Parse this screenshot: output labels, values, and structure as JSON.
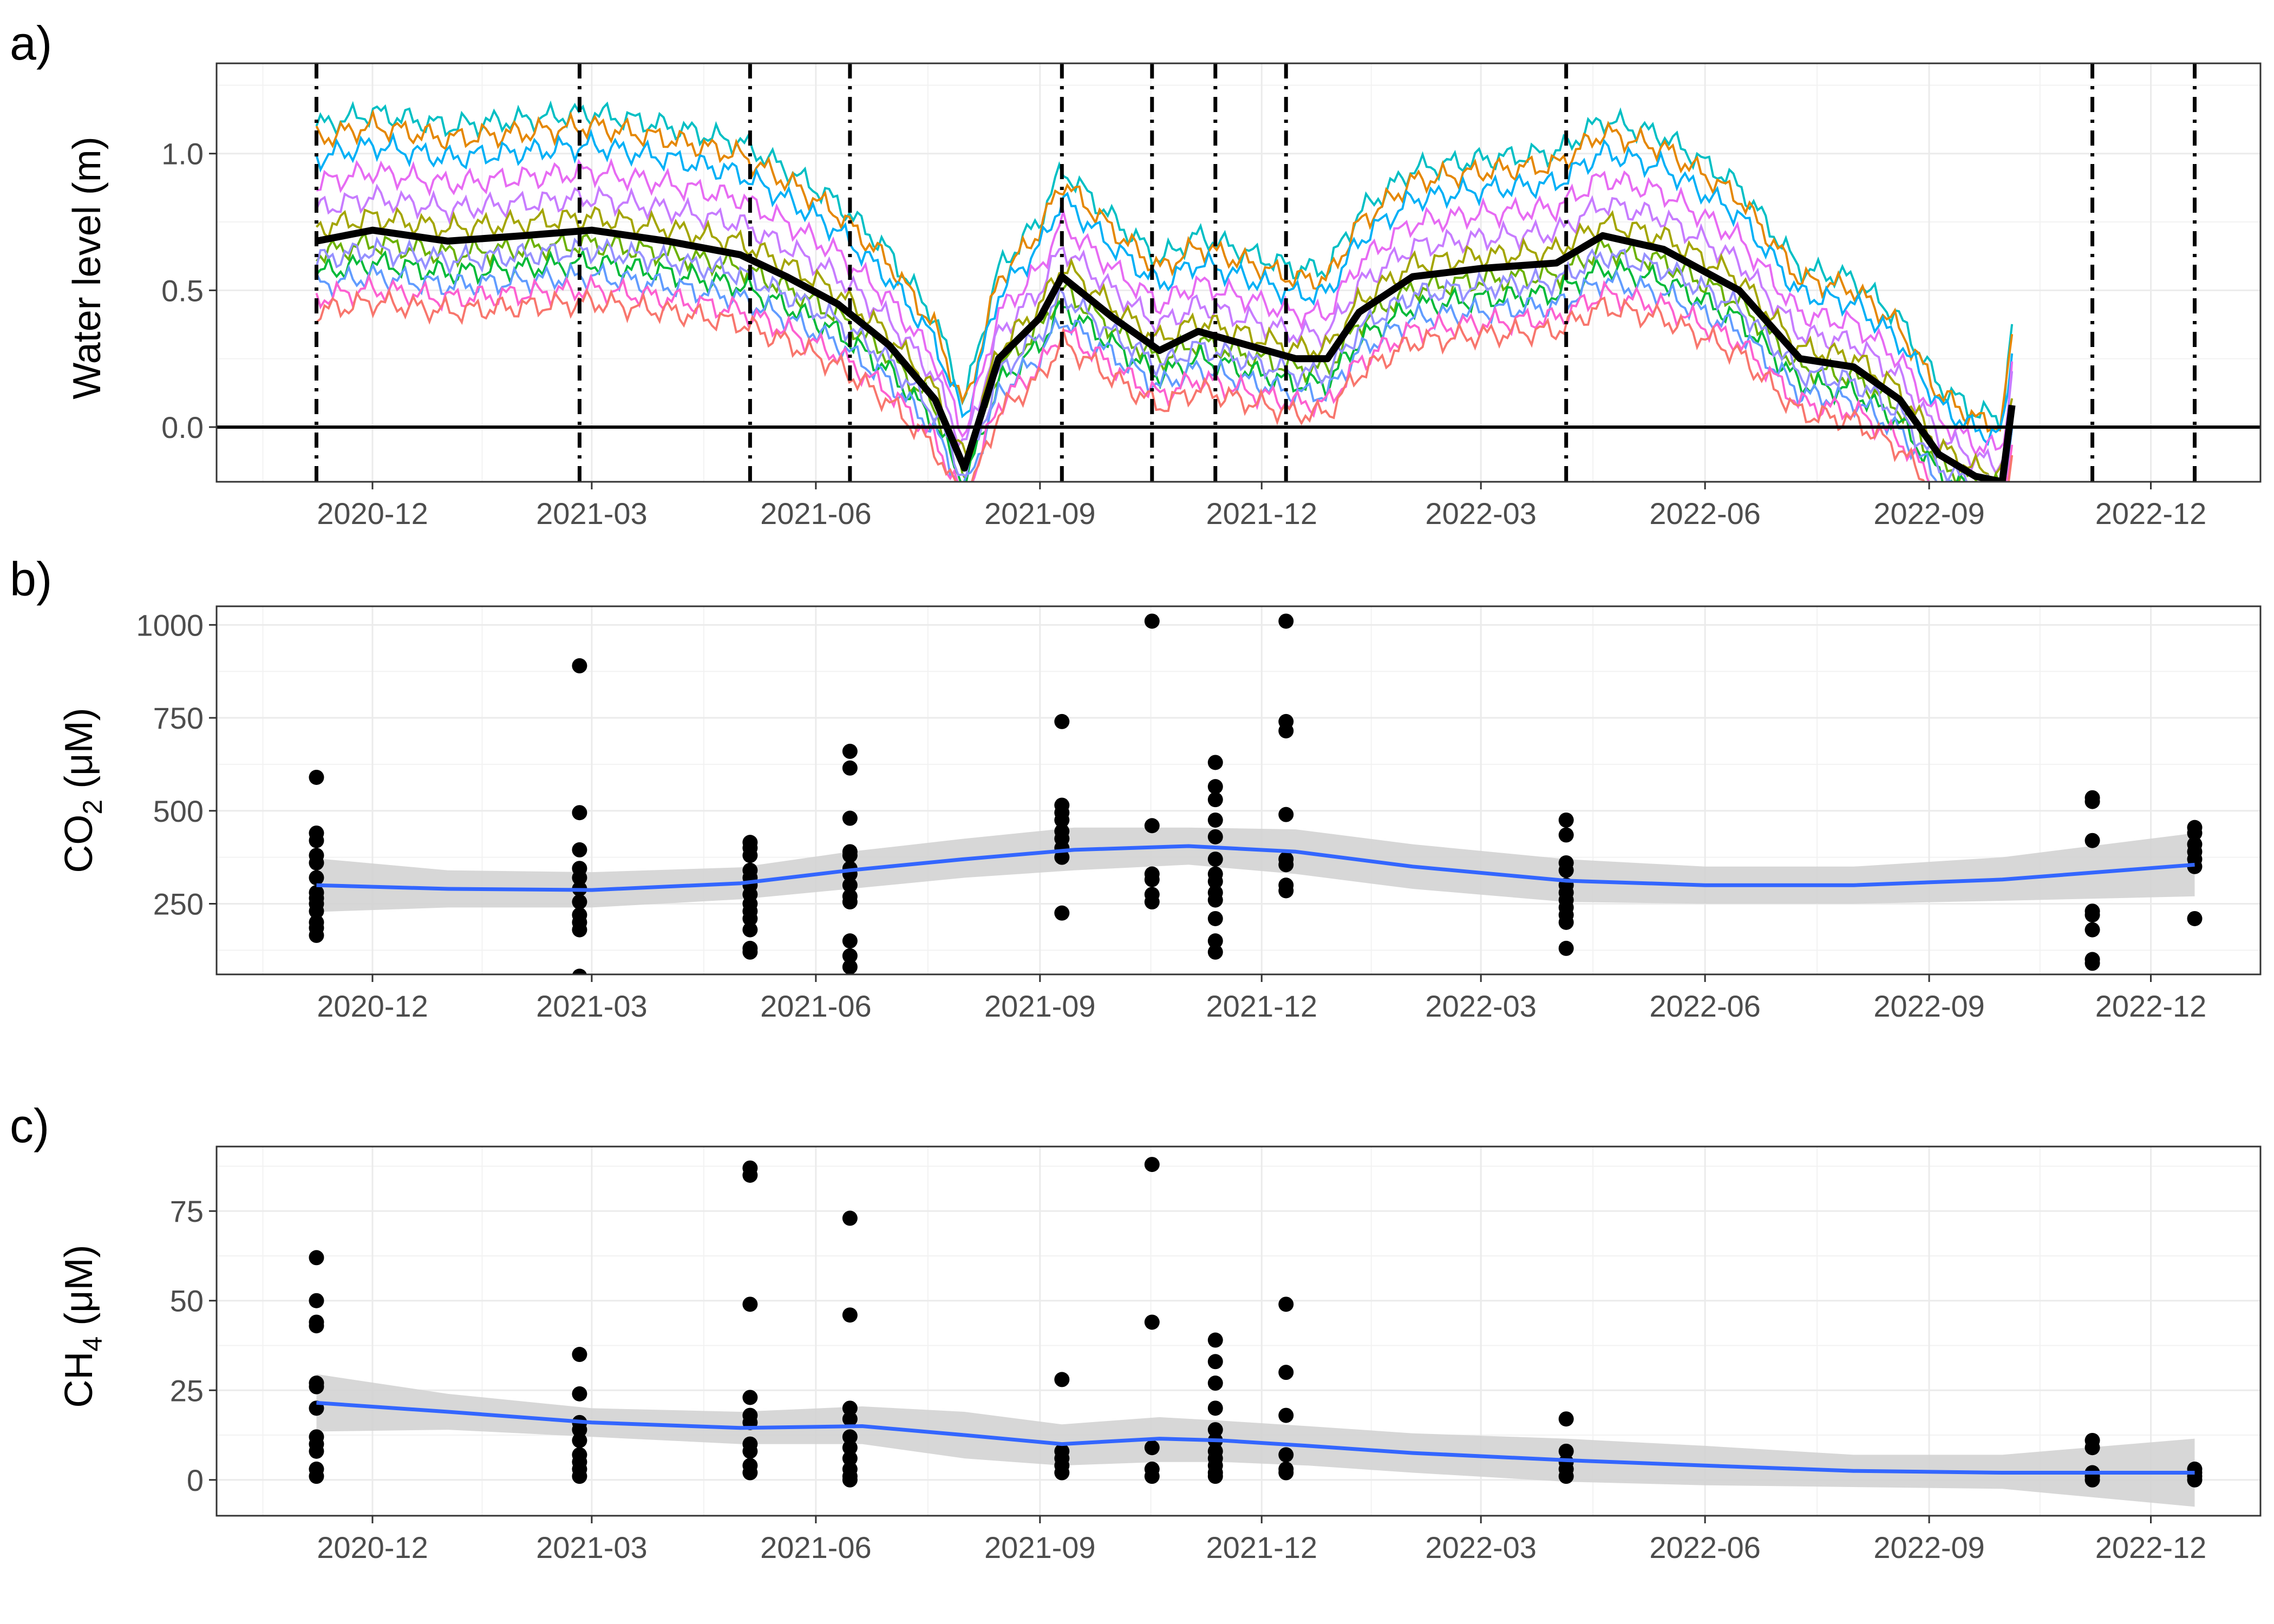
{
  "chart_data": [
    {
      "panel_label": "a)",
      "type": "line",
      "ylabel": "Water level (m)",
      "ylim": [
        -0.2,
        1.33
      ],
      "yticks": [
        "0.0",
        "0.5",
        "1.0"
      ],
      "xlim": [
        "2020-09-28",
        "2023-01-15"
      ],
      "xticks": [
        "2020-12",
        "2021-03",
        "2021-06",
        "2021-09",
        "2021-12",
        "2022-03",
        "2022-06",
        "2022-09",
        "2022-12"
      ],
      "grid": true,
      "reference_line_y": 0,
      "sampling_dates": [
        "2020-11-08",
        "2021-02-24",
        "2021-05-05",
        "2021-06-15",
        "2021-09-10",
        "2021-10-17",
        "2021-11-12",
        "2021-12-11",
        "2022-04-05",
        "2022-11-07",
        "2022-12-19"
      ],
      "mean_series": {
        "name": "mean",
        "color": "#000000",
        "x": [
          "2020-11-08",
          "2020-12-01",
          "2021-01-01",
          "2021-02-01",
          "2021-03-01",
          "2021-04-01",
          "2021-05-01",
          "2021-05-20",
          "2021-06-10",
          "2021-07-01",
          "2021-07-20",
          "2021-08-01",
          "2021-08-15",
          "2021-09-01",
          "2021-09-10",
          "2021-10-01",
          "2021-10-20",
          "2021-11-05",
          "2021-11-25",
          "2021-12-15",
          "2021-12-28",
          "2022-01-10",
          "2022-02-01",
          "2022-03-01",
          "2022-04-01",
          "2022-04-20",
          "2022-05-15",
          "2022-06-15",
          "2022-07-10",
          "2022-08-01",
          "2022-08-20",
          "2022-09-05",
          "2022-09-20",
          "2022-10-01",
          "2022-10-05"
        ],
        "values": [
          0.68,
          0.72,
          0.68,
          0.7,
          0.72,
          0.68,
          0.63,
          0.55,
          0.45,
          0.3,
          0.1,
          -0.15,
          0.25,
          0.4,
          0.55,
          0.4,
          0.28,
          0.35,
          0.3,
          0.25,
          0.25,
          0.42,
          0.55,
          0.58,
          0.6,
          0.7,
          0.65,
          0.5,
          0.25,
          0.22,
          0.1,
          -0.1,
          -0.18,
          -0.2,
          0.08
        ]
      },
      "series": [
        {
          "color": "#00bfc4",
          "offset": 0.36
        },
        {
          "color": "#e58700",
          "offset": 0.32
        },
        {
          "color": "#00b0f6",
          "offset": 0.26
        },
        {
          "color": "#e76bf3",
          "offset": 0.18
        },
        {
          "color": "#c77cff",
          "offset": 0.1
        },
        {
          "color": "#a3a500",
          "offset": 0.04
        },
        {
          "color": "#6bb100",
          "offset": -0.04
        },
        {
          "color": "#00ba38",
          "offset": -0.1
        },
        {
          "color": "#619cff",
          "offset": -0.14
        },
        {
          "color": "#fd61d1",
          "offset": -0.18
        },
        {
          "color": "#f8766d",
          "offset": -0.22
        },
        {
          "color": "#9590ff",
          "offset": -0.06
        }
      ]
    },
    {
      "panel_label": "b)",
      "type": "scatter",
      "ylabel_main": "CO",
      "ylabel_sub": "2",
      "ylabel_unit": " (μM)",
      "ylim": [
        60,
        1050
      ],
      "yticks": [
        250,
        500,
        750,
        1000
      ],
      "xlim": [
        "2020-09-28",
        "2023-01-15"
      ],
      "xticks": [
        "2020-12",
        "2021-03",
        "2021-06",
        "2021-09",
        "2021-12",
        "2022-03",
        "2022-06",
        "2022-09",
        "2022-12"
      ],
      "grid": true,
      "points": [
        [
          "2020-11-08",
          590
        ],
        [
          "2020-11-08",
          440
        ],
        [
          "2020-11-08",
          420
        ],
        [
          "2020-11-08",
          380
        ],
        [
          "2020-11-08",
          360
        ],
        [
          "2020-11-08",
          320
        ],
        [
          "2020-11-08",
          280
        ],
        [
          "2020-11-08",
          265
        ],
        [
          "2020-11-08",
          250
        ],
        [
          "2020-11-08",
          230
        ],
        [
          "2020-11-08",
          200
        ],
        [
          "2020-11-08",
          185
        ],
        [
          "2020-11-08",
          165
        ],
        [
          "2021-02-24",
          890
        ],
        [
          "2021-02-24",
          495
        ],
        [
          "2021-02-24",
          395
        ],
        [
          "2021-02-24",
          345
        ],
        [
          "2021-02-24",
          320
        ],
        [
          "2021-02-24",
          290
        ],
        [
          "2021-02-24",
          255
        ],
        [
          "2021-02-24",
          220
        ],
        [
          "2021-02-24",
          200
        ],
        [
          "2021-02-24",
          180
        ],
        [
          "2021-02-24",
          55
        ],
        [
          "2021-05-05",
          415
        ],
        [
          "2021-05-05",
          400
        ],
        [
          "2021-05-05",
          380
        ],
        [
          "2021-05-05",
          340
        ],
        [
          "2021-05-05",
          320
        ],
        [
          "2021-05-05",
          300
        ],
        [
          "2021-05-05",
          275
        ],
        [
          "2021-05-05",
          250
        ],
        [
          "2021-05-05",
          230
        ],
        [
          "2021-05-05",
          210
        ],
        [
          "2021-05-05",
          180
        ],
        [
          "2021-05-05",
          130
        ],
        [
          "2021-05-05",
          120
        ],
        [
          "2021-06-15",
          660
        ],
        [
          "2021-06-15",
          615
        ],
        [
          "2021-06-15",
          480
        ],
        [
          "2021-06-15",
          390
        ],
        [
          "2021-06-15",
          380
        ],
        [
          "2021-06-15",
          345
        ],
        [
          "2021-06-15",
          330
        ],
        [
          "2021-06-15",
          300
        ],
        [
          "2021-06-15",
          270
        ],
        [
          "2021-06-15",
          255
        ],
        [
          "2021-06-15",
          150
        ],
        [
          "2021-06-15",
          110
        ],
        [
          "2021-06-15",
          80
        ],
        [
          "2021-09-10",
          740
        ],
        [
          "2021-09-10",
          515
        ],
        [
          "2021-09-10",
          495
        ],
        [
          "2021-09-10",
          475
        ],
        [
          "2021-09-10",
          445
        ],
        [
          "2021-09-10",
          425
        ],
        [
          "2021-09-10",
          400
        ],
        [
          "2021-09-10",
          375
        ],
        [
          "2021-09-10",
          225
        ],
        [
          "2021-10-17",
          1010
        ],
        [
          "2021-10-17",
          460
        ],
        [
          "2021-10-17",
          330
        ],
        [
          "2021-10-17",
          315
        ],
        [
          "2021-10-17",
          275
        ],
        [
          "2021-10-17",
          255
        ],
        [
          "2021-11-12",
          630
        ],
        [
          "2021-11-12",
          565
        ],
        [
          "2021-11-12",
          530
        ],
        [
          "2021-11-12",
          475
        ],
        [
          "2021-11-12",
          430
        ],
        [
          "2021-11-12",
          370
        ],
        [
          "2021-11-12",
          330
        ],
        [
          "2021-11-12",
          310
        ],
        [
          "2021-11-12",
          280
        ],
        [
          "2021-11-12",
          260
        ],
        [
          "2021-11-12",
          210
        ],
        [
          "2021-11-12",
          150
        ],
        [
          "2021-11-12",
          120
        ],
        [
          "2021-12-11",
          1010
        ],
        [
          "2021-12-11",
          740
        ],
        [
          "2021-12-11",
          715
        ],
        [
          "2021-12-11",
          490
        ],
        [
          "2021-12-11",
          370
        ],
        [
          "2021-12-11",
          355
        ],
        [
          "2021-12-11",
          300
        ],
        [
          "2021-12-11",
          285
        ],
        [
          "2022-04-05",
          475
        ],
        [
          "2022-04-05",
          435
        ],
        [
          "2022-04-05",
          360
        ],
        [
          "2022-04-05",
          340
        ],
        [
          "2022-04-05",
          300
        ],
        [
          "2022-04-05",
          280
        ],
        [
          "2022-04-05",
          260
        ],
        [
          "2022-04-05",
          240
        ],
        [
          "2022-04-05",
          220
        ],
        [
          "2022-04-05",
          200
        ],
        [
          "2022-04-05",
          130
        ],
        [
          "2022-11-07",
          535
        ],
        [
          "2022-11-07",
          525
        ],
        [
          "2022-11-07",
          420
        ],
        [
          "2022-11-07",
          230
        ],
        [
          "2022-11-07",
          220
        ],
        [
          "2022-11-07",
          180
        ],
        [
          "2022-11-07",
          100
        ],
        [
          "2022-11-07",
          90
        ],
        [
          "2022-12-19",
          455
        ],
        [
          "2022-12-19",
          440
        ],
        [
          "2022-12-19",
          410
        ],
        [
          "2022-12-19",
          390
        ],
        [
          "2022-12-19",
          370
        ],
        [
          "2022-12-19",
          350
        ],
        [
          "2022-12-19",
          210
        ]
      ],
      "smooth": {
        "color": "#3366ff",
        "band_color": "#d3d3d3",
        "x": [
          "2020-11-08",
          "2021-01-01",
          "2021-03-01",
          "2021-05-01",
          "2021-06-15",
          "2021-08-01",
          "2021-09-15",
          "2021-11-01",
          "2021-12-15",
          "2022-02-01",
          "2022-04-05",
          "2022-06-01",
          "2022-08-01",
          "2022-10-01",
          "2022-12-19"
        ],
        "values": [
          300,
          290,
          287,
          305,
          340,
          370,
          395,
          405,
          390,
          350,
          312,
          300,
          300,
          315,
          355
        ],
        "lower": [
          228,
          240,
          240,
          262,
          290,
          320,
          340,
          355,
          330,
          290,
          255,
          250,
          250,
          258,
          270
        ],
        "upper": [
          372,
          340,
          335,
          348,
          390,
          425,
          455,
          455,
          450,
          410,
          370,
          350,
          350,
          375,
          440
        ]
      }
    },
    {
      "panel_label": "c)",
      "type": "scatter",
      "ylabel_main": "CH",
      "ylabel_sub": "4",
      "ylabel_unit": " (μM)",
      "ylim": [
        -10,
        93
      ],
      "yticks": [
        0,
        25,
        50,
        75
      ],
      "xlim": [
        "2020-09-28",
        "2023-01-15"
      ],
      "xticks": [
        "2020-12",
        "2021-03",
        "2021-06",
        "2021-09",
        "2021-12",
        "2022-03",
        "2022-06",
        "2022-09",
        "2022-12"
      ],
      "grid": true,
      "points": [
        [
          "2020-11-08",
          62
        ],
        [
          "2020-11-08",
          50
        ],
        [
          "2020-11-08",
          44
        ],
        [
          "2020-11-08",
          43
        ],
        [
          "2020-11-08",
          27
        ],
        [
          "2020-11-08",
          26
        ],
        [
          "2020-11-08",
          20
        ],
        [
          "2020-11-08",
          12
        ],
        [
          "2020-11-08",
          10
        ],
        [
          "2020-11-08",
          8
        ],
        [
          "2020-11-08",
          3
        ],
        [
          "2020-11-08",
          1
        ],
        [
          "2021-02-24",
          35
        ],
        [
          "2021-02-24",
          24
        ],
        [
          "2021-02-24",
          16
        ],
        [
          "2021-02-24",
          14
        ],
        [
          "2021-02-24",
          11
        ],
        [
          "2021-02-24",
          7
        ],
        [
          "2021-02-24",
          5
        ],
        [
          "2021-02-24",
          3
        ],
        [
          "2021-02-24",
          1
        ],
        [
          "2021-05-05",
          87
        ],
        [
          "2021-05-05",
          85
        ],
        [
          "2021-05-05",
          49
        ],
        [
          "2021-05-05",
          23
        ],
        [
          "2021-05-05",
          18
        ],
        [
          "2021-05-05",
          16
        ],
        [
          "2021-05-05",
          10
        ],
        [
          "2021-05-05",
          8
        ],
        [
          "2021-05-05",
          4
        ],
        [
          "2021-05-05",
          2
        ],
        [
          "2021-06-15",
          73
        ],
        [
          "2021-06-15",
          46
        ],
        [
          "2021-06-15",
          20
        ],
        [
          "2021-06-15",
          17
        ],
        [
          "2021-06-15",
          12
        ],
        [
          "2021-06-15",
          9
        ],
        [
          "2021-06-15",
          6
        ],
        [
          "2021-06-15",
          3
        ],
        [
          "2021-06-15",
          1
        ],
        [
          "2021-06-15",
          0
        ],
        [
          "2021-09-10",
          28
        ],
        [
          "2021-09-10",
          8
        ],
        [
          "2021-09-10",
          6
        ],
        [
          "2021-09-10",
          4
        ],
        [
          "2021-09-10",
          2
        ],
        [
          "2021-10-17",
          88
        ],
        [
          "2021-10-17",
          44
        ],
        [
          "2021-10-17",
          9
        ],
        [
          "2021-10-17",
          3
        ],
        [
          "2021-10-17",
          1
        ],
        [
          "2021-11-12",
          39
        ],
        [
          "2021-11-12",
          33
        ],
        [
          "2021-11-12",
          27
        ],
        [
          "2021-11-12",
          20
        ],
        [
          "2021-11-12",
          14
        ],
        [
          "2021-11-12",
          11
        ],
        [
          "2021-11-12",
          8
        ],
        [
          "2021-11-12",
          6
        ],
        [
          "2021-11-12",
          4
        ],
        [
          "2021-11-12",
          2
        ],
        [
          "2021-11-12",
          1
        ],
        [
          "2021-12-11",
          49
        ],
        [
          "2021-12-11",
          30
        ],
        [
          "2021-12-11",
          18
        ],
        [
          "2021-12-11",
          7
        ],
        [
          "2021-12-11",
          3
        ],
        [
          "2021-12-11",
          2
        ],
        [
          "2022-04-05",
          17
        ],
        [
          "2022-04-05",
          8
        ],
        [
          "2022-04-05",
          5
        ],
        [
          "2022-04-05",
          3
        ],
        [
          "2022-04-05",
          1
        ],
        [
          "2022-11-07",
          11
        ],
        [
          "2022-11-07",
          9
        ],
        [
          "2022-11-07",
          2
        ],
        [
          "2022-11-07",
          1
        ],
        [
          "2022-11-07",
          0
        ],
        [
          "2022-12-19",
          3
        ],
        [
          "2022-12-19",
          2
        ],
        [
          "2022-12-19",
          1
        ],
        [
          "2022-12-19",
          0
        ]
      ],
      "smooth": {
        "color": "#3366ff",
        "band_color": "#d3d3d3",
        "x": [
          "2020-11-08",
          "2021-01-01",
          "2021-03-01",
          "2021-05-01",
          "2021-06-20",
          "2021-08-01",
          "2021-09-10",
          "2021-10-20",
          "2021-11-15",
          "2021-12-20",
          "2022-02-01",
          "2022-04-05",
          "2022-06-01",
          "2022-08-01",
          "2022-10-01",
          "2022-12-19"
        ],
        "values": [
          21.5,
          19,
          16,
          14.5,
          15,
          12.5,
          10,
          11.5,
          11,
          9.5,
          7.5,
          5.5,
          4,
          2.5,
          2,
          2
        ],
        "lower": [
          13.5,
          14,
          12,
          10,
          10,
          6,
          4,
          5,
          5,
          4,
          2,
          -0.5,
          -1.5,
          -2,
          -2.5,
          -7.5
        ],
        "upper": [
          29.5,
          24,
          20,
          19,
          20.5,
          19,
          15.5,
          17.5,
          16.5,
          15,
          13,
          11.5,
          9.5,
          7,
          7,
          11.5
        ]
      }
    }
  ]
}
